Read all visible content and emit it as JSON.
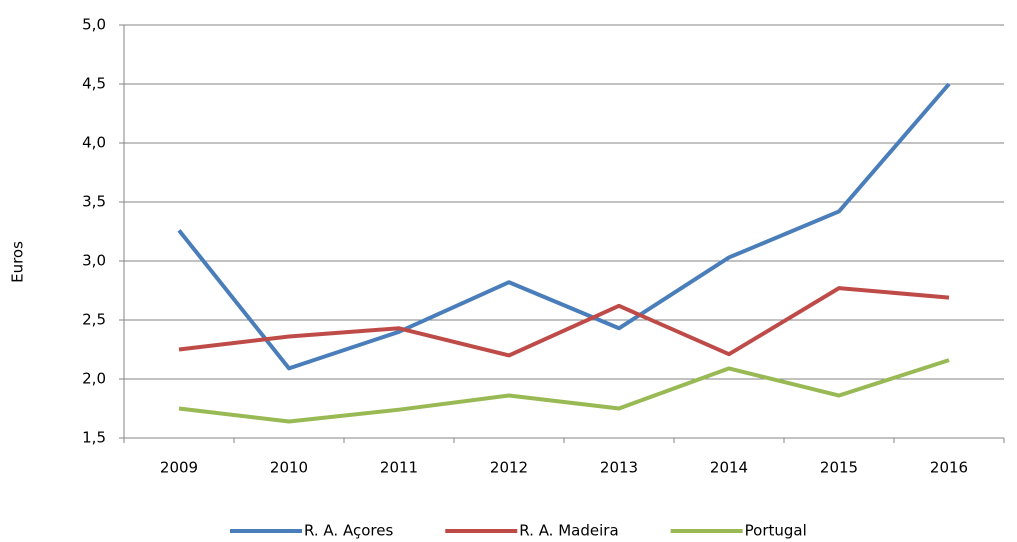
{
  "chart_data": {
    "type": "line",
    "y_label": "Euros",
    "categories": [
      "2009",
      "2010",
      "2011",
      "2012",
      "2013",
      "2014",
      "2015",
      "2016"
    ],
    "series": [
      {
        "name": "R. A. Açores",
        "color": "#4a7ebb",
        "values": [
          3.26,
          2.09,
          2.4,
          2.82,
          2.43,
          3.03,
          3.42,
          4.5
        ]
      },
      {
        "name": "R. A. Madeira",
        "color": "#be4b48",
        "values": [
          2.25,
          2.36,
          2.43,
          2.2,
          2.62,
          2.21,
          2.77,
          2.69
        ]
      },
      {
        "name": "Portugal",
        "color": "#98b954",
        "values": [
          1.75,
          1.64,
          1.74,
          1.86,
          1.75,
          2.09,
          1.86,
          2.16
        ]
      }
    ],
    "ylim": [
      1.5,
      5.0
    ],
    "yticks": [
      {
        "value": 1.5,
        "label": "1,5"
      },
      {
        "value": 2.0,
        "label": "2,0"
      },
      {
        "value": 2.5,
        "label": "2,5"
      },
      {
        "value": 3.0,
        "label": "3,0"
      },
      {
        "value": 3.5,
        "label": "3,5"
      },
      {
        "value": 4.0,
        "label": "4,0"
      },
      {
        "value": 4.5,
        "label": "4,5"
      },
      {
        "value": 5.0,
        "label": "5,0"
      }
    ],
    "grid": true,
    "legend": "bottom"
  }
}
